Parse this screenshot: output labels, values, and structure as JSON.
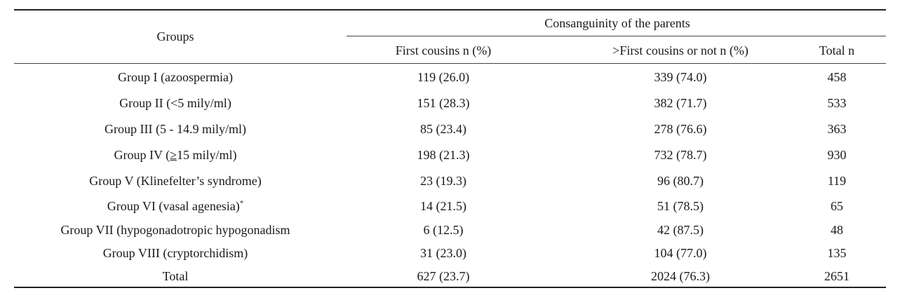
{
  "table": {
    "header": {
      "groups": "Groups",
      "span": "Consanguinity of the parents",
      "columns": [
        "First cousins n (%)",
        ">First cousins or not n (%)",
        "Total n"
      ]
    },
    "rows": [
      {
        "group": "Group I (azoospermia)",
        "first": "119 (26.0)",
        "other": "339 (74.0)",
        "total": "458"
      },
      {
        "group": "Group II (<5 mily/ml)",
        "first": "151 (28.3)",
        "other": "382 (71.7)",
        "total": "533"
      },
      {
        "group": "Group III (5 - 14.9 mily/ml)",
        "first": "85 (23.4)",
        "other": "278 (76.6)",
        "total": "363"
      },
      {
        "group_pre": "Group IV (",
        "group_sym": "≥",
        "group_post": "15 mily/ml)",
        "first": "198 (21.3)",
        "other": "732 (78.7)",
        "total": "930"
      },
      {
        "group": "Group V (Klinefelter’s syndrome)",
        "first": "23 (19.3)",
        "other": "96 (80.7)",
        "total": "119"
      },
      {
        "group": "Group VI (vasal agenesia)",
        "group_mark": "*",
        "first": "14 (21.5)",
        "other": "51 (78.5)",
        "total": "65"
      },
      {
        "group": "Group VII (hypogonadotropic hypogonadism",
        "first": "6 (12.5)",
        "other": "42 (87.5)",
        "total": "48"
      },
      {
        "group": "Group VIII (cryptorchidism)",
        "first": "31 (23.0)",
        "other": "104 (77.0)",
        "total": "135"
      },
      {
        "group": "Total",
        "first": "627 (23.7)",
        "other": "2024 (76.3)",
        "total": "2651"
      }
    ]
  }
}
